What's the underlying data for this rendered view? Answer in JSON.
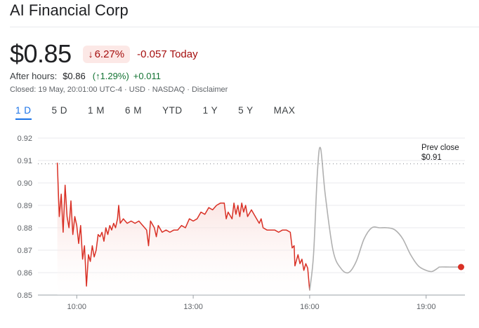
{
  "header": {
    "title": "AI Financial Corp"
  },
  "quote": {
    "price": "$0.85",
    "change_percent": "6.27%",
    "change_direction": "down",
    "change_today": "-0.057 Today"
  },
  "after_hours": {
    "label": "After hours:",
    "price": "$0.86",
    "percent": "(↑1.29%)",
    "change": "+0.011"
  },
  "closed_info": "Closed: 19 May, 20:01:00 UTC-4 · USD · NASDAQ · Disclaimer",
  "tabs": [
    {
      "label": "1 D",
      "active": true
    },
    {
      "label": "5 D",
      "active": false
    },
    {
      "label": "1 M",
      "active": false
    },
    {
      "label": "6 M",
      "active": false
    },
    {
      "label": "YTD",
      "active": false
    },
    {
      "label": "1 Y",
      "active": false
    },
    {
      "label": "5 Y",
      "active": false
    },
    {
      "label": "MAX",
      "active": false
    }
  ],
  "colors": {
    "down": "#d93025",
    "after_hours_line": "#b0b0b0",
    "fill_top": "#f6c9c4",
    "grid": "#e8eaed"
  },
  "chart_data": {
    "type": "line",
    "x_axis": {
      "min": 9.0,
      "max": 20.0,
      "ticks": [
        10,
        13,
        16,
        19
      ],
      "tick_labels": [
        "10:00",
        "13:00",
        "16:00",
        "19:00"
      ]
    },
    "y_axis": {
      "min": 0.85,
      "max": 0.92,
      "ticks": [
        0.92,
        0.91,
        0.9,
        0.89,
        0.88,
        0.87,
        0.86,
        0.85
      ],
      "tick_labels": [
        "0.92",
        "0.91",
        "0.90",
        "0.89",
        "0.88",
        "0.87",
        "0.86",
        "0.85"
      ]
    },
    "prev_close": {
      "value": 0.9085,
      "label_line1": "Prev close",
      "label_line2": "$0.91"
    },
    "grid": true,
    "series": [
      {
        "session": "regular",
        "color": "#d93025",
        "points": [
          [
            9.5,
            0.909
          ],
          [
            9.55,
            0.885
          ],
          [
            9.6,
            0.895
          ],
          [
            9.65,
            0.878
          ],
          [
            9.7,
            0.899
          ],
          [
            9.75,
            0.885
          ],
          [
            9.8,
            0.88
          ],
          [
            9.85,
            0.892
          ],
          [
            9.9,
            0.877
          ],
          [
            9.95,
            0.885
          ],
          [
            10.0,
            0.881
          ],
          [
            10.05,
            0.873
          ],
          [
            10.1,
            0.881
          ],
          [
            10.15,
            0.866
          ],
          [
            10.2,
            0.872
          ],
          [
            10.25,
            0.854
          ],
          [
            10.3,
            0.868
          ],
          [
            10.35,
            0.865
          ],
          [
            10.4,
            0.872
          ],
          [
            10.45,
            0.867
          ],
          [
            10.5,
            0.87
          ],
          [
            10.55,
            0.877
          ],
          [
            10.6,
            0.876
          ],
          [
            10.65,
            0.878
          ],
          [
            10.7,
            0.874
          ],
          [
            10.75,
            0.88
          ],
          [
            10.8,
            0.877
          ],
          [
            10.85,
            0.881
          ],
          [
            10.9,
            0.879
          ],
          [
            10.95,
            0.882
          ],
          [
            11.0,
            0.88
          ],
          [
            11.05,
            0.884
          ],
          [
            11.08,
            0.89
          ],
          [
            11.12,
            0.882
          ],
          [
            11.2,
            0.884
          ],
          [
            11.3,
            0.882
          ],
          [
            11.4,
            0.883
          ],
          [
            11.5,
            0.882
          ],
          [
            11.6,
            0.883
          ],
          [
            11.7,
            0.881
          ],
          [
            11.8,
            0.879
          ],
          [
            11.85,
            0.872
          ],
          [
            11.9,
            0.883
          ],
          [
            12.0,
            0.88
          ],
          [
            12.05,
            0.876
          ],
          [
            12.1,
            0.881
          ],
          [
            12.2,
            0.878
          ],
          [
            12.3,
            0.879
          ],
          [
            12.4,
            0.878
          ],
          [
            12.5,
            0.879
          ],
          [
            12.6,
            0.879
          ],
          [
            12.7,
            0.881
          ],
          [
            12.8,
            0.88
          ],
          [
            12.9,
            0.884
          ],
          [
            13.0,
            0.883
          ],
          [
            13.1,
            0.884
          ],
          [
            13.2,
            0.887
          ],
          [
            13.3,
            0.886
          ],
          [
            13.4,
            0.889
          ],
          [
            13.5,
            0.888
          ],
          [
            13.6,
            0.89
          ],
          [
            13.7,
            0.891
          ],
          [
            13.8,
            0.891
          ],
          [
            13.85,
            0.884
          ],
          [
            13.9,
            0.887
          ],
          [
            14.0,
            0.884
          ],
          [
            14.05,
            0.891
          ],
          [
            14.1,
            0.886
          ],
          [
            14.15,
            0.89
          ],
          [
            14.2,
            0.885
          ],
          [
            14.25,
            0.891
          ],
          [
            14.3,
            0.887
          ],
          [
            14.35,
            0.89
          ],
          [
            14.4,
            0.885
          ],
          [
            14.5,
            0.888
          ],
          [
            14.6,
            0.885
          ],
          [
            14.7,
            0.882
          ],
          [
            14.75,
            0.884
          ],
          [
            14.8,
            0.88
          ],
          [
            14.9,
            0.879
          ],
          [
            15.0,
            0.879
          ],
          [
            15.1,
            0.879
          ],
          [
            15.2,
            0.878
          ],
          [
            15.3,
            0.879
          ],
          [
            15.4,
            0.879
          ],
          [
            15.5,
            0.878
          ],
          [
            15.55,
            0.871
          ],
          [
            15.6,
            0.872
          ],
          [
            15.62,
            0.863
          ],
          [
            15.7,
            0.868
          ],
          [
            15.75,
            0.864
          ],
          [
            15.8,
            0.866
          ],
          [
            15.85,
            0.861
          ],
          [
            15.9,
            0.864
          ],
          [
            15.95,
            0.862
          ],
          [
            16.0,
            0.852
          ]
        ]
      },
      {
        "session": "after_hours",
        "color": "#b0b0b0",
        "points": [
          [
            16.0,
            0.852
          ],
          [
            16.1,
            0.868
          ],
          [
            16.2,
            0.905
          ],
          [
            16.28,
            0.9155
          ],
          [
            16.4,
            0.895
          ],
          [
            16.6,
            0.87
          ],
          [
            16.8,
            0.862
          ],
          [
            17.0,
            0.86
          ],
          [
            17.2,
            0.865
          ],
          [
            17.4,
            0.875
          ],
          [
            17.6,
            0.88
          ],
          [
            17.8,
            0.88
          ],
          [
            18.0,
            0.88
          ],
          [
            18.2,
            0.879
          ],
          [
            18.4,
            0.875
          ],
          [
            18.6,
            0.868
          ],
          [
            18.8,
            0.863
          ],
          [
            19.0,
            0.861
          ],
          [
            19.15,
            0.8605
          ],
          [
            19.3,
            0.862
          ],
          [
            19.35,
            0.8625
          ],
          [
            19.6,
            0.8625
          ],
          [
            19.9,
            0.8625
          ]
        ]
      }
    ],
    "last_point": [
      19.9,
      0.8625
    ]
  }
}
